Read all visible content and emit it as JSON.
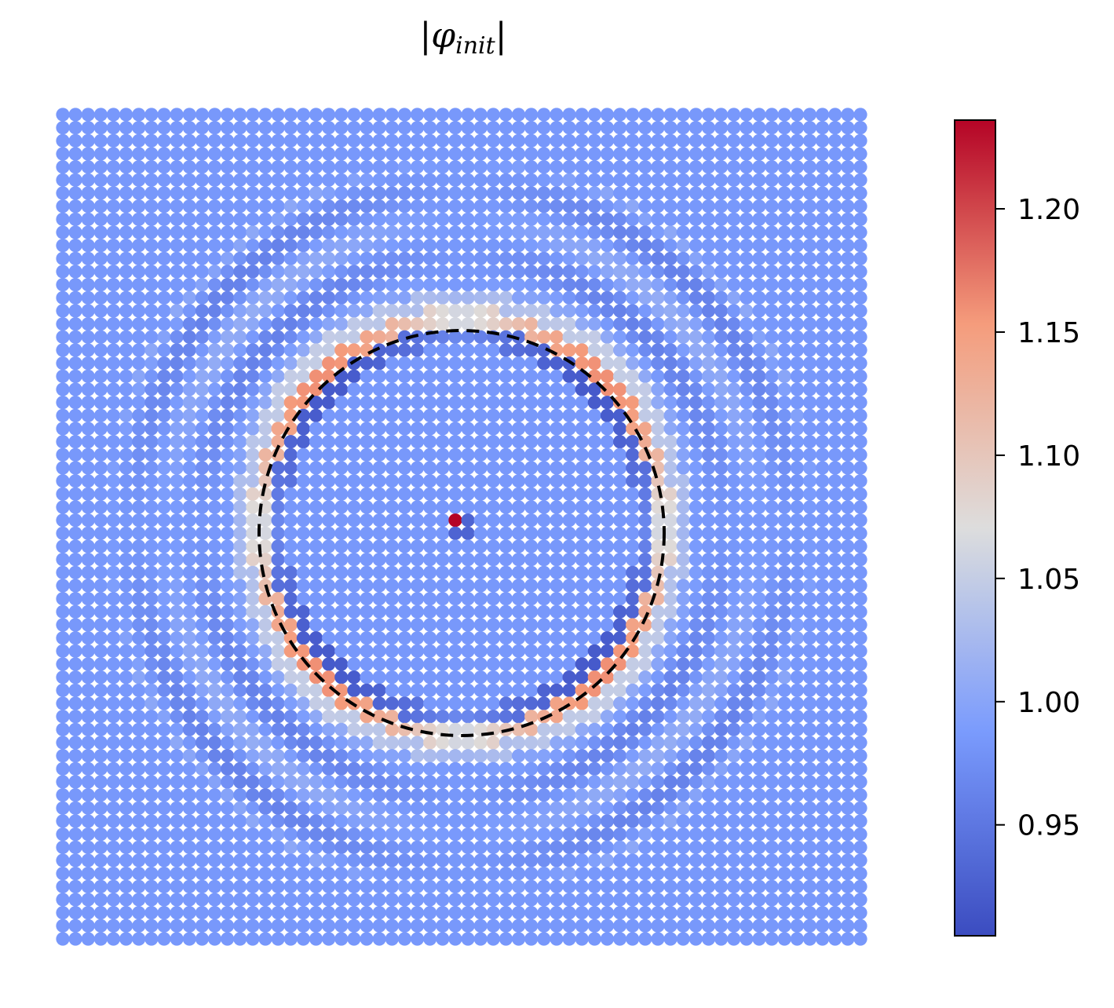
{
  "chart_data": {
    "type": "scatter",
    "title": "|φ_init|",
    "title_parts": {
      "bar": "|",
      "symbol": "φ",
      "subscript": "init"
    },
    "xlabel": "",
    "ylabel": "",
    "axes_visible": false,
    "lattice_points_per_side": 64,
    "colormap": "coolwarm",
    "value_range": [
      0.905,
      1.236
    ],
    "colorbar": {
      "ticks": [
        0.95,
        1.0,
        1.05,
        1.1,
        1.15,
        1.2
      ],
      "tick_labels": [
        "0.95",
        "1.00",
        "1.05",
        "1.10",
        "1.15",
        "1.20"
      ],
      "placement": "right"
    },
    "background_value": 0.985,
    "center_value": 1.236,
    "center_neighbor_value": 0.93,
    "ring": {
      "style": "dashed",
      "color": "#000000",
      "radius_in_lattice_units": 16,
      "peak_value": 1.16,
      "inner_dip_value": 0.92
    },
    "colors": {
      "low": "#3b4cc0",
      "mid": "#dddddd",
      "high": "#b40426",
      "background_points": "#93b5fe"
    }
  }
}
